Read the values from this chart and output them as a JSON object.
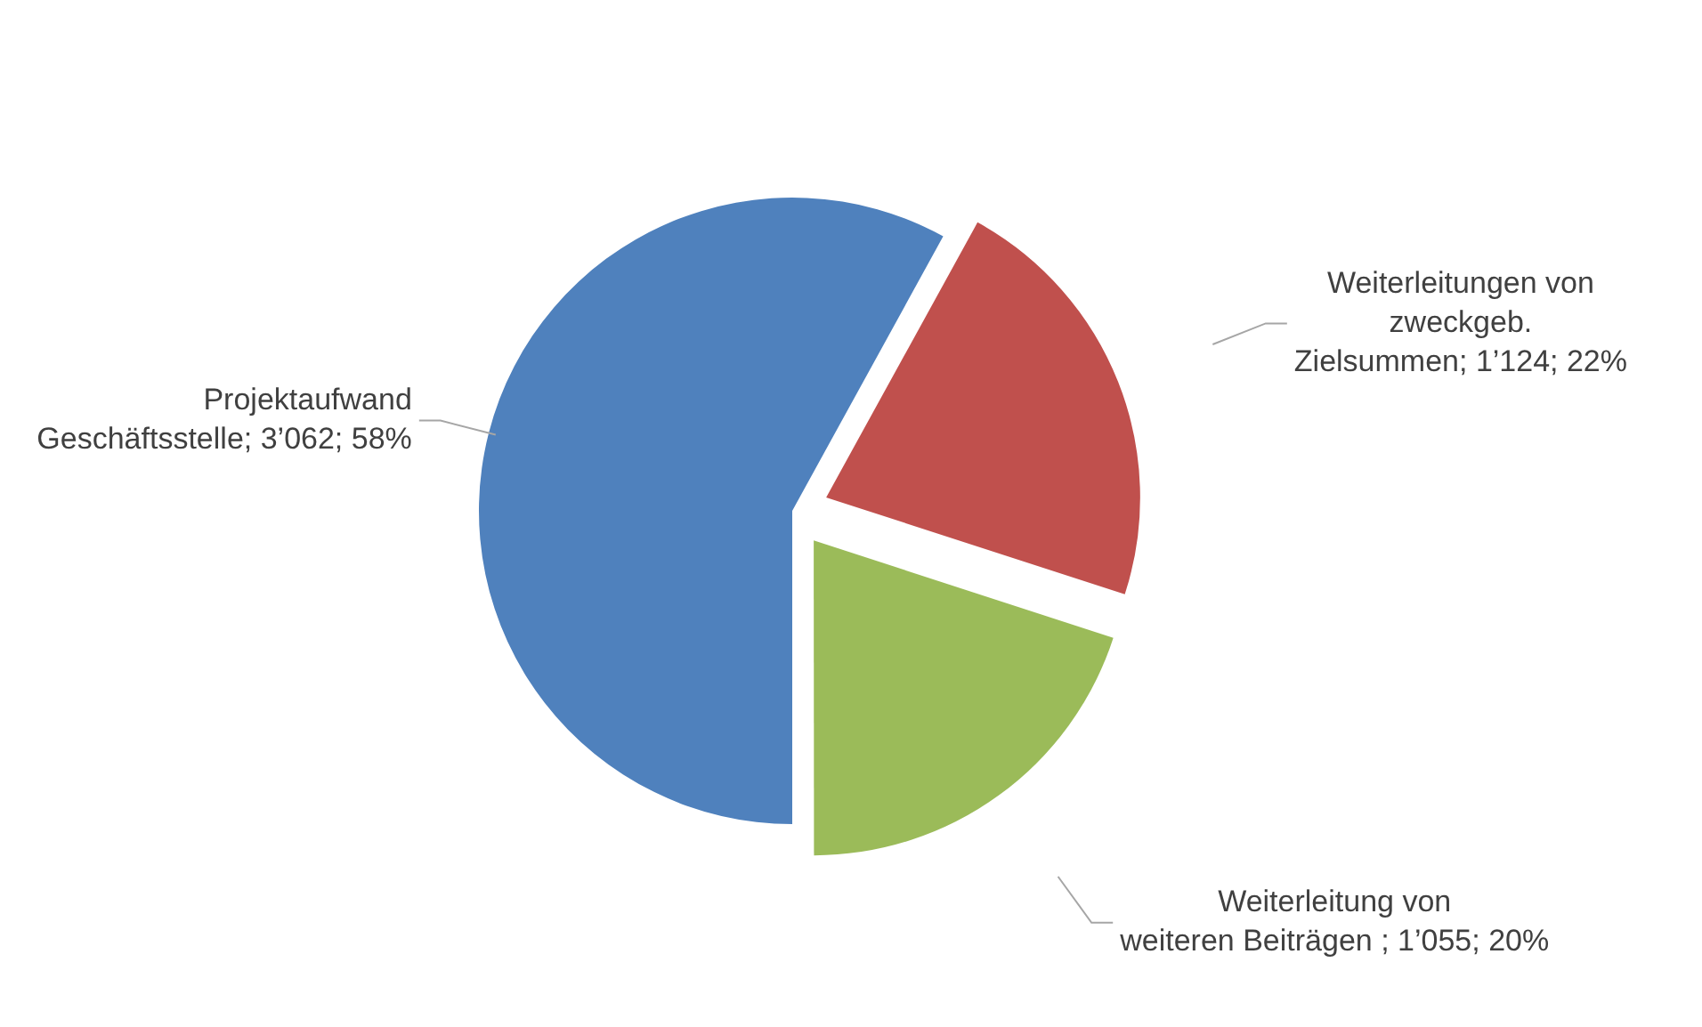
{
  "chart_data": {
    "type": "pie",
    "categories": [
      "Projektaufwand Geschäftsstelle",
      "Weiterleitungen von zweckgeb. Zielsummen",
      "Weiterleitung von weiteren Beiträgen "
    ],
    "values": [
      58,
      22,
      20
    ],
    "value_labels": [
      "3’062; 58%",
      "1’124; 22%",
      "1’055; 20%"
    ],
    "colors": [
      "#4f81bd",
      "#c0504d",
      "#9bbb59"
    ],
    "data_labels": true,
    "legend": false
  }
}
